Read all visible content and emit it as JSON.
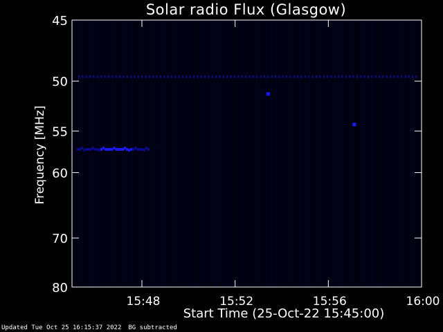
{
  "chart_data": {
    "type": "heatmap",
    "title": "Solar radio Flux (Glasgow)",
    "xlabel": "Start Time (25-Oct-22 15:45:00)",
    "ylabel": "Frequency [MHz]",
    "x_range_minutes": [
      "15:45",
      "16:00"
    ],
    "y_range_mhz": [
      45,
      80
    ],
    "y_scale": "reciprocal (frequency increases downward)",
    "x_tick_labels": [
      "15:48",
      "15:52",
      "15:56",
      "16:00"
    ],
    "x_tick_minutes": [
      48,
      52,
      56,
      60
    ],
    "y_tick_labels": [
      "45",
      "50",
      "55",
      "60",
      "70",
      "80"
    ],
    "y_tick_values": [
      45,
      50,
      55,
      60,
      70,
      80
    ],
    "colors": {
      "background": "#000000",
      "plot_background": "#000010",
      "vertical_stripe": "#00002a",
      "emission": "#1a1aff",
      "emission_dim": "#0a0a8a",
      "axis": "#ffffff"
    },
    "features": [
      {
        "name": "interference line",
        "freq_mhz": 49.6,
        "start": "15:45",
        "end": "16:00",
        "intensity": "medium"
      },
      {
        "name": "band",
        "freq_mhz": 57.1,
        "start": "15:45",
        "end": "15:48",
        "intensity": "high"
      },
      {
        "name": "spot",
        "freq_mhz": 51.2,
        "start": "15:53.4",
        "end": "15:53.5",
        "intensity": "high"
      },
      {
        "name": "spot",
        "freq_mhz": 54.3,
        "start": "15:57.1",
        "end": "15:57.2",
        "intensity": "high"
      }
    ]
  },
  "footer": {
    "updated": "Updated Tue Oct 25 16:15:37 2022",
    "note": "BG subtracted"
  }
}
